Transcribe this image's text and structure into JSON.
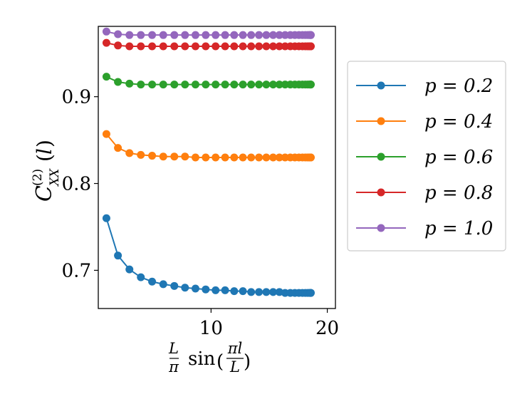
{
  "chart_data": {
    "type": "line",
    "xlabel": "L/π sin(πl/L)",
    "ylabel": "C(2)XX(l)",
    "xlim": [
      0.3,
      20.7
    ],
    "ylim": [
      0.656,
      0.981
    ],
    "xticks": [
      10,
      20
    ],
    "xtick_labels": [
      "10",
      "20"
    ],
    "yticks": [
      0.7,
      0.8,
      0.9
    ],
    "ytick_labels": [
      "0.7",
      "0.8",
      "0.9"
    ],
    "legend_position": "outside-right",
    "grid": false,
    "x": [
      1.0,
      1.99,
      2.98,
      3.96,
      4.93,
      5.89,
      6.84,
      7.76,
      8.66,
      9.54,
      10.39,
      11.21,
      11.99,
      12.74,
      13.45,
      14.12,
      14.75,
      15.34,
      15.88,
      16.37,
      16.82,
      17.21,
      17.56,
      17.86,
      18.11,
      18.31,
      18.45,
      18.54,
      18.58,
      18.58
    ],
    "series": [
      {
        "name": "p = 0.2",
        "color": "#1f77b4",
        "values": [
          0.76,
          0.717,
          0.701,
          0.692,
          0.687,
          0.684,
          0.682,
          0.68,
          0.679,
          0.678,
          0.677,
          0.677,
          0.676,
          0.676,
          0.675,
          0.675,
          0.675,
          0.675,
          0.675,
          0.674,
          0.674,
          0.674,
          0.674,
          0.674,
          0.674,
          0.674,
          0.674,
          0.674,
          0.674,
          0.674
        ]
      },
      {
        "name": "p = 0.4",
        "color": "#ff7f0e",
        "values": [
          0.857,
          0.841,
          0.835,
          0.833,
          0.832,
          0.831,
          0.831,
          0.831,
          0.83,
          0.83,
          0.83,
          0.83,
          0.83,
          0.83,
          0.83,
          0.83,
          0.83,
          0.83,
          0.83,
          0.83,
          0.83,
          0.83,
          0.83,
          0.83,
          0.83,
          0.83,
          0.83,
          0.83,
          0.83,
          0.83
        ]
      },
      {
        "name": "p = 0.6",
        "color": "#2ca02c",
        "values": [
          0.923,
          0.917,
          0.915,
          0.914,
          0.914,
          0.914,
          0.914,
          0.914,
          0.914,
          0.914,
          0.914,
          0.914,
          0.914,
          0.914,
          0.914,
          0.914,
          0.914,
          0.914,
          0.914,
          0.914,
          0.914,
          0.914,
          0.914,
          0.914,
          0.914,
          0.914,
          0.914,
          0.914,
          0.914,
          0.914
        ]
      },
      {
        "name": "p = 0.8",
        "color": "#d62728",
        "values": [
          0.962,
          0.959,
          0.958,
          0.958,
          0.958,
          0.958,
          0.958,
          0.958,
          0.958,
          0.958,
          0.958,
          0.958,
          0.958,
          0.958,
          0.958,
          0.958,
          0.958,
          0.958,
          0.958,
          0.958,
          0.958,
          0.958,
          0.958,
          0.958,
          0.958,
          0.958,
          0.958,
          0.958,
          0.958,
          0.958
        ]
      },
      {
        "name": "p = 1.0",
        "color": "#9467bd",
        "values": [
          0.975,
          0.972,
          0.971,
          0.971,
          0.971,
          0.971,
          0.971,
          0.971,
          0.971,
          0.971,
          0.971,
          0.971,
          0.971,
          0.971,
          0.971,
          0.971,
          0.971,
          0.971,
          0.971,
          0.971,
          0.971,
          0.971,
          0.971,
          0.971,
          0.971,
          0.971,
          0.971,
          0.971,
          0.971,
          0.971
        ]
      }
    ]
  }
}
